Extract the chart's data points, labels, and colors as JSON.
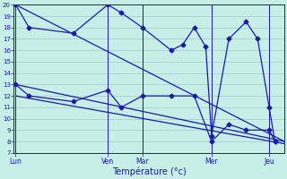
{
  "xlabel": "Température (°c)",
  "bg_color": "#c8eee8",
  "grid_color": "#a0ccc8",
  "line_color": "#1a1aaa",
  "spine_color": "#1a1aaa",
  "ylim": [
    7,
    20
  ],
  "yticks": [
    7,
    8,
    9,
    10,
    11,
    12,
    13,
    14,
    15,
    16,
    17,
    18,
    19,
    20
  ],
  "day_labels": [
    "Lun",
    "Ven",
    "Mar",
    "Mer",
    "Jeu"
  ],
  "day_x": [
    0,
    96,
    132,
    204,
    264
  ],
  "xlim": [
    -2,
    280
  ],
  "series_max_x": [
    0,
    14,
    60,
    96,
    110,
    132,
    162,
    174,
    186,
    198,
    204,
    222,
    240,
    252,
    264,
    270
  ],
  "series_max_y": [
    20,
    18,
    17.5,
    20,
    19.3,
    18,
    16,
    16.5,
    18,
    16.3,
    8.5,
    17,
    18.5,
    17,
    11,
    8
  ],
  "series_min_x": [
    0,
    14,
    60,
    96,
    110,
    132,
    162,
    186,
    204,
    222,
    240,
    264,
    270
  ],
  "series_min_y": [
    13,
    12,
    11.5,
    12.5,
    11,
    12,
    12,
    12,
    8,
    9.5,
    9,
    9,
    8
  ],
  "trend1_x": [
    0,
    280
  ],
  "trend1_y": [
    20,
    8
  ],
  "trend2_x": [
    0,
    280
  ],
  "trend2_y": [
    13,
    8
  ],
  "trend3_x": [
    0,
    280
  ],
  "trend3_y": [
    12,
    7.8
  ]
}
